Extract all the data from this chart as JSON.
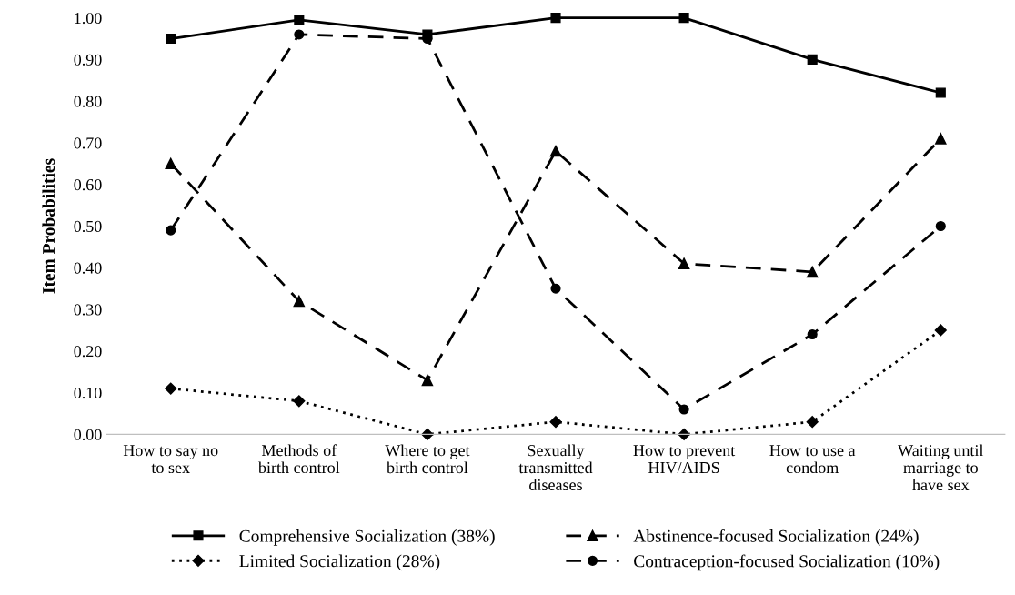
{
  "chart_data": {
    "type": "line",
    "ylabel": "Item Probabilities",
    "categories": [
      "How to say no\nto sex",
      "Methods of\nbirth control",
      "Where to get\nbirth control",
      "Sexually\ntransmitted\ndiseases",
      "How to prevent\nHIV/AIDS",
      "How to use a\ncondom",
      "Waiting until\nmarriage to\nhave sex"
    ],
    "series": [
      {
        "name": "Comprehensive Socialization (38%)",
        "color": "#000000",
        "marker": "square",
        "line_style": "solid",
        "values": [
          0.95,
          0.995,
          0.96,
          1.0,
          1.0,
          0.9,
          0.82
        ]
      },
      {
        "name": "Limited Socialization (28%)",
        "color": "#000000",
        "marker": "diamond",
        "line_style": "dotted",
        "values": [
          0.11,
          0.08,
          0.0,
          0.03,
          0.0,
          0.03,
          0.25
        ]
      },
      {
        "name": "Abstinence-focused Socialization (24%)",
        "color": "#000000",
        "marker": "triangle",
        "line_style": "dashed",
        "values": [
          0.65,
          0.32,
          0.13,
          0.68,
          0.41,
          0.39,
          0.71
        ]
      },
      {
        "name": "Contraception-focused Socialization (10%)",
        "color": "#000000",
        "marker": "circle",
        "line_style": "dashed",
        "values": [
          0.49,
          0.96,
          0.95,
          0.35,
          0.06,
          0.24,
          0.5
        ]
      }
    ],
    "ylim": [
      0,
      1.0
    ],
    "yticks": [
      {
        "value": 0,
        "label": "0.00"
      },
      {
        "value": 0.1,
        "label": "0.10"
      },
      {
        "value": 0.2,
        "label": "0.20"
      },
      {
        "value": 0.3,
        "label": "0.30"
      },
      {
        "value": 0.4,
        "label": "0.40"
      },
      {
        "value": 0.5,
        "label": "0.50"
      },
      {
        "value": 0.6,
        "label": "0.60"
      },
      {
        "value": 0.7,
        "label": "0.70"
      },
      {
        "value": 0.8,
        "label": "0.80"
      },
      {
        "value": 0.9,
        "label": "0.90"
      },
      {
        "value": 1.0,
        "label": "1.00"
      }
    ],
    "grid": false,
    "legend": "bottom"
  }
}
